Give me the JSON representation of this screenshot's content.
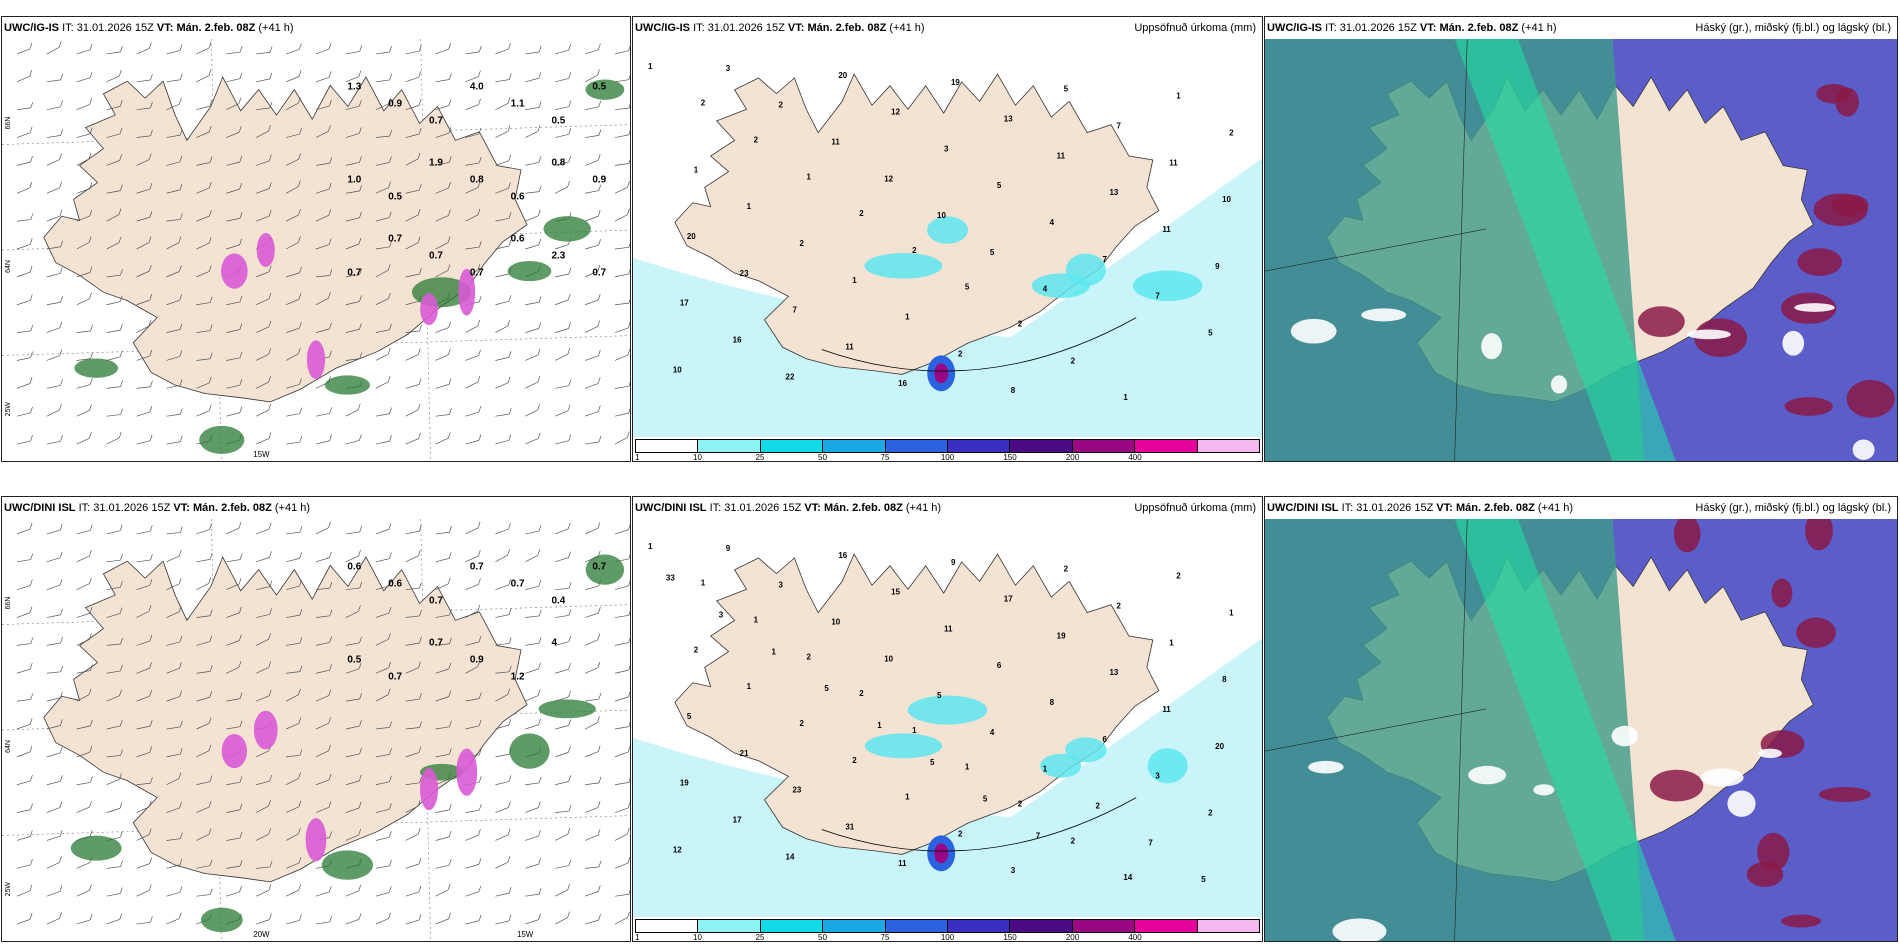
{
  "legend_colors": [
    "#ffffff",
    "#8ef3f5",
    "#10dbe6",
    "#1aa9e6",
    "#2b62e0",
    "#3b2fc2",
    "#4b0a84",
    "#9a0785",
    "#e6009c",
    "#f3b7f2"
  ],
  "legend_ticks": [
    "1",
    "10",
    "25",
    "50",
    "75",
    "100",
    "150",
    "200",
    "400"
  ],
  "colors": {
    "land": "#f4e3d3",
    "precip_light": "#c9f4f9",
    "precip_med": "#5de6ef",
    "cloud_high": "#5b5ec9",
    "cloud_mid": "#3d9a8a",
    "cloud_low": "#1ee3a4",
    "wind_green": "#2a7a33",
    "snow_pink": "#d85ad4"
  },
  "panels": [
    {
      "id": "ig-wind",
      "model": "UWC/IG-IS",
      "it_label": "IT:",
      "it_value": "31.01.2026 15Z",
      "vt_label": "VT:",
      "vt_value": "Mán. 2.feb. 08Z",
      "lead": "(+41 h)",
      "right_title": "",
      "lat_labels": [
        "66N",
        "64N",
        "25W"
      ],
      "lon_labels": [
        "15W"
      ],
      "values": [
        "1.3",
        "0.9",
        "0.7",
        "4.0",
        "1.1",
        "0.5",
        "0.5",
        "1.0",
        "0.5",
        "1.9",
        "0.8",
        "0.6",
        "0.8",
        "0.9",
        "0.7",
        "0.7",
        "0.7",
        "0.7",
        "0.6",
        "2.3",
        "0.7"
      ]
    },
    {
      "id": "ig-precip",
      "model": "UWC/IG-IS",
      "it_label": "IT:",
      "it_value": "31.01.2026 15Z",
      "vt_label": "VT:",
      "vt_value": "Mán. 2.feb. 08Z",
      "lead": "(+41 h)",
      "right_title": "Uppsöfnuð úrkoma (mm)",
      "values": [
        "1",
        "2",
        "2",
        "1",
        "2",
        "2",
        "5",
        "2",
        "2",
        "1",
        "1",
        "2",
        "1",
        "1",
        "2",
        "1",
        "1",
        "2",
        "8",
        "5",
        "7",
        "11",
        "10",
        "20",
        "23",
        "7",
        "11",
        "16",
        "19",
        "13",
        "11",
        "13",
        "11",
        "9",
        "17",
        "16",
        "22",
        "20",
        "12",
        "3",
        "5",
        "4",
        "7",
        "7",
        "5",
        "10",
        "3",
        "2",
        "11",
        "12",
        "10",
        "5",
        "4"
      ]
    },
    {
      "id": "ig-cloud",
      "model": "UWC/IG-IS",
      "it_label": "IT:",
      "it_value": "31.01.2026 15Z",
      "vt_label": "VT:",
      "vt_value": "Mán. 2.feb. 08Z",
      "lead": "(+41 h)",
      "right_title": "Háský (gr.), miðský (fj.bl.) og lágský (bl.)"
    },
    {
      "id": "dini-wind",
      "model": "UWC/DINI ISL",
      "it_label": "IT:",
      "it_value": "31.01.2026 15Z",
      "vt_label": "VT:",
      "vt_value": "Mán. 2.feb. 08Z",
      "lead": "(+41 h)",
      "right_title": "",
      "lat_labels": [
        "66N",
        "64N",
        "25W"
      ],
      "lon_labels": [
        "20W",
        "15W"
      ],
      "values": [
        "0.6",
        "0.6",
        "0.7",
        "0.7",
        "0.7",
        "0.4",
        "0.7",
        "0.5",
        "0.7",
        "0.7",
        "0.9",
        "1.2",
        "4"
      ]
    },
    {
      "id": "dini-precip",
      "model": "UWC/DINI ISL",
      "it_label": "IT:",
      "it_value": "31.01.2026 15Z",
      "vt_label": "VT:",
      "vt_value": "Mán. 2.feb. 08Z",
      "lead": "(+41 h)",
      "right_title": "Uppsöfnuð úrkoma (mm)",
      "values": [
        "1",
        "1",
        "1",
        "2",
        "2",
        "1",
        "1",
        "2",
        "2",
        "14",
        "2",
        "1",
        "2",
        "1",
        "2",
        "2",
        "1",
        "2",
        "3",
        "2",
        "2",
        "1",
        "8",
        "5",
        "21",
        "23",
        "31",
        "11",
        "9",
        "17",
        "19",
        "13",
        "11",
        "20",
        "19",
        "17",
        "14",
        "16",
        "15",
        "11",
        "6",
        "8",
        "6",
        "3",
        "2",
        "12",
        "9",
        "3",
        "10",
        "10",
        "5",
        "4",
        "1",
        "2",
        "7",
        "5",
        "33",
        "3",
        "1",
        "5",
        "1",
        "5",
        "5",
        "7"
      ]
    },
    {
      "id": "dini-cloud",
      "model": "UWC/DINI ISL",
      "it_label": "IT:",
      "it_value": "31.01.2026 15Z",
      "vt_label": "VT:",
      "vt_value": "Mán. 2.feb. 08Z",
      "lead": "(+41 h)",
      "right_title": "Háský (gr.), miðský (fj.bl.) og lágský (bl.)"
    }
  ]
}
